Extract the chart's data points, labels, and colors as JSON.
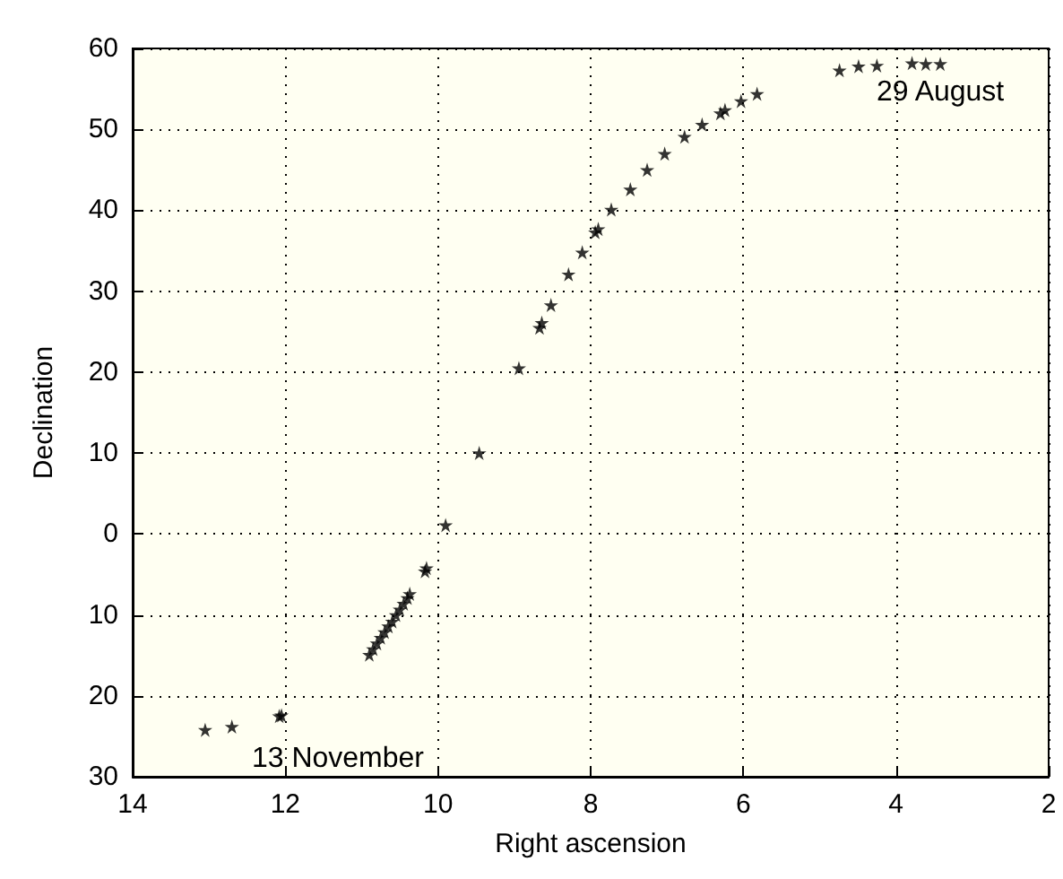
{
  "chart_data": {
    "type": "scatter",
    "xlabel": "Right ascension",
    "ylabel": "Declination",
    "x": [
      13.05,
      12.7,
      12.08,
      12.05,
      10.9,
      10.85,
      10.8,
      10.75,
      10.7,
      10.65,
      10.6,
      10.55,
      10.5,
      10.45,
      10.4,
      10.37,
      10.17,
      10.15,
      9.9,
      9.46,
      8.94,
      8.67,
      8.64,
      8.52,
      8.29,
      8.11,
      7.94,
      7.9,
      7.73,
      7.48,
      7.26,
      7.03,
      6.77,
      6.54,
      6.3,
      6.24,
      6.03,
      5.82,
      4.74,
      4.49,
      4.25,
      3.79,
      3.61,
      3.42
    ],
    "values": [
      -24.2,
      -23.8,
      -22.5,
      -22.4,
      -14.9,
      -14.2,
      -13.5,
      -12.8,
      -12.1,
      -11.4,
      -10.8,
      -10.0,
      -9.3,
      -8.6,
      -7.9,
      -7.4,
      -4.6,
      -4.2,
      1.1,
      10,
      20.5,
      25.5,
      26.1,
      28.3,
      32.1,
      34.8,
      37.3,
      37.7,
      40.1,
      42.6,
      45,
      47,
      49.1,
      50.6,
      52,
      52.4,
      53.5,
      54.4,
      57.3,
      57.8,
      57.9,
      58.2,
      58.1,
      58.1
    ],
    "color": "#000000",
    "marker": "star",
    "xlim": [
      14,
      2
    ],
    "xticks": [
      14,
      12,
      10,
      8,
      6,
      4,
      2
    ],
    "ylim": [
      -30,
      60
    ],
    "yticks": [
      {
        "value": -30,
        "label": "30"
      },
      {
        "value": -20,
        "label": "20"
      },
      {
        "value": -10,
        "label": "10"
      },
      0,
      10,
      20,
      30,
      40,
      50,
      60
    ],
    "grid": true,
    "annotations": [
      {
        "text": "29 August",
        "x": 3.42,
        "y": 58.1
      },
      {
        "text": "13 November",
        "x": 13.05,
        "y": -24.2
      }
    ]
  }
}
